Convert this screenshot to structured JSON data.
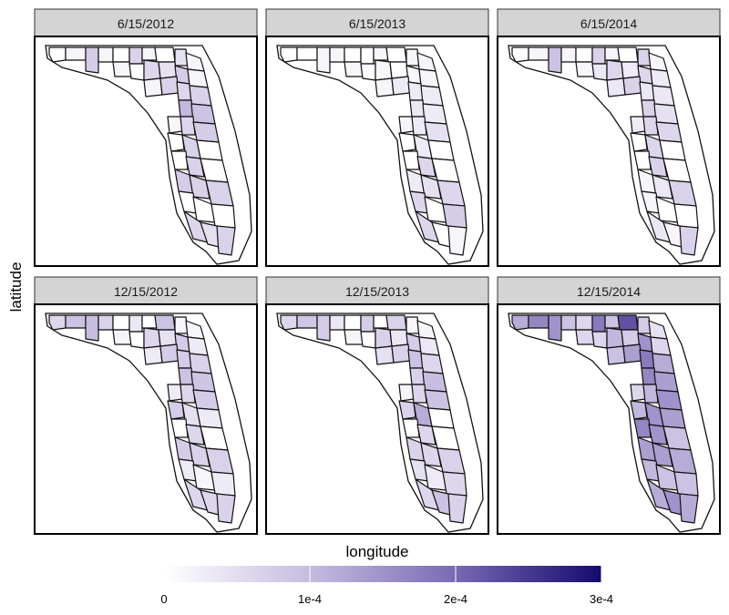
{
  "chart_data": {
    "type": "choropleth-facets",
    "xlabel": "longitude",
    "ylabel": "latitude",
    "colorbar": {
      "min": 0,
      "max": 0.0003,
      "ticks": [
        {
          "value": 0,
          "label": "0"
        },
        {
          "value": 0.0001,
          "label": "1e-4"
        },
        {
          "value": 0.0002,
          "label": "2e-4"
        },
        {
          "value": 0.0003,
          "label": "3e-4"
        }
      ],
      "low_color": "#ffffff",
      "high_color": "#140a6e",
      "placement": "bottom"
    },
    "facet_layout": {
      "rows": 2,
      "cols": 3
    },
    "facets": [
      {
        "label": "6/15/2012",
        "intensity": [
          0,
          0.05,
          0.25,
          0.05,
          0,
          0.22,
          0.05,
          0,
          0.15,
          0.05,
          0.05,
          0,
          0.2,
          0.15,
          0.25,
          0.05,
          0.05,
          0.22,
          0.2,
          0.22,
          0.35,
          0.3,
          0.05,
          0.2,
          0.25,
          0,
          0.22,
          0,
          0,
          0.22,
          0,
          0.25,
          0.22,
          0.22,
          0,
          0,
          0,
          0.2,
          0.15,
          0.22
        ]
      },
      {
        "label": "6/15/2013",
        "intensity": [
          0,
          0,
          0.05,
          0.05,
          0,
          0,
          0.05,
          0,
          0.05,
          0.05,
          0.05,
          0,
          0.05,
          0,
          0.05,
          0.05,
          0.05,
          0.1,
          0.1,
          0.1,
          0.12,
          0.1,
          0.05,
          0.1,
          0.15,
          0,
          0.1,
          0,
          0,
          0.2,
          0,
          0.1,
          0.15,
          0.2,
          0.2,
          0,
          0.25,
          0.2,
          0,
          0.05
        ]
      },
      {
        "label": "6/15/2014",
        "intensity": [
          0,
          0.05,
          0.3,
          0.05,
          0,
          0.22,
          0.05,
          0,
          0.22,
          0.05,
          0.05,
          0.12,
          0.2,
          0.1,
          0.2,
          0.1,
          0.12,
          0.22,
          0.12,
          0.12,
          0.22,
          0.15,
          0.1,
          0.2,
          0.2,
          0,
          0.2,
          0,
          0,
          0.22,
          0,
          0.05,
          0.12,
          0.22,
          0.05,
          0,
          0,
          0.12,
          0.05,
          0.22
        ]
      },
      {
        "label": "12/15/2012",
        "intensity": [
          0.2,
          0.3,
          0.32,
          0.22,
          0,
          0.12,
          0,
          0.3,
          0.05,
          0.05,
          0.05,
          0,
          0.2,
          0.15,
          0.25,
          0.1,
          0.1,
          0.25,
          0.25,
          0.22,
          0.3,
          0.28,
          0.1,
          0.2,
          0.25,
          0.25,
          0.15,
          0.1,
          0,
          0.2,
          0,
          0.25,
          0.22,
          0.22,
          0.1,
          0.05,
          0.1,
          0.2,
          0.2,
          0.22
        ]
      },
      {
        "label": "12/15/2013",
        "intensity": [
          0.2,
          0.28,
          0.25,
          0.12,
          0,
          0.25,
          0,
          0.22,
          0.05,
          0.05,
          0.05,
          0,
          0.22,
          0.12,
          0.25,
          0.12,
          0.15,
          0.22,
          0.3,
          0.2,
          0.22,
          0.32,
          0.05,
          0.2,
          0.3,
          0.22,
          0.4,
          0,
          0,
          0.2,
          0,
          0.22,
          0.2,
          0.22,
          0.15,
          0.1,
          0.2,
          0.2,
          0.3,
          0.22
        ]
      },
      {
        "label": "12/15/2014",
        "intensity": [
          0.4,
          0.55,
          0.5,
          0.3,
          0.2,
          0.6,
          0.3,
          0.75,
          0.25,
          0.15,
          0.2,
          0.2,
          0.35,
          0.25,
          0.5,
          0.2,
          0.3,
          0.45,
          0.6,
          0.4,
          0.55,
          0.45,
          0.2,
          0.35,
          0.5,
          0.35,
          0.5,
          0.45,
          0.55,
          0.5,
          0.3,
          0.45,
          0.45,
          0.4,
          0.35,
          0.3,
          0.3,
          0.4,
          0.5,
          0.4
        ]
      }
    ]
  }
}
